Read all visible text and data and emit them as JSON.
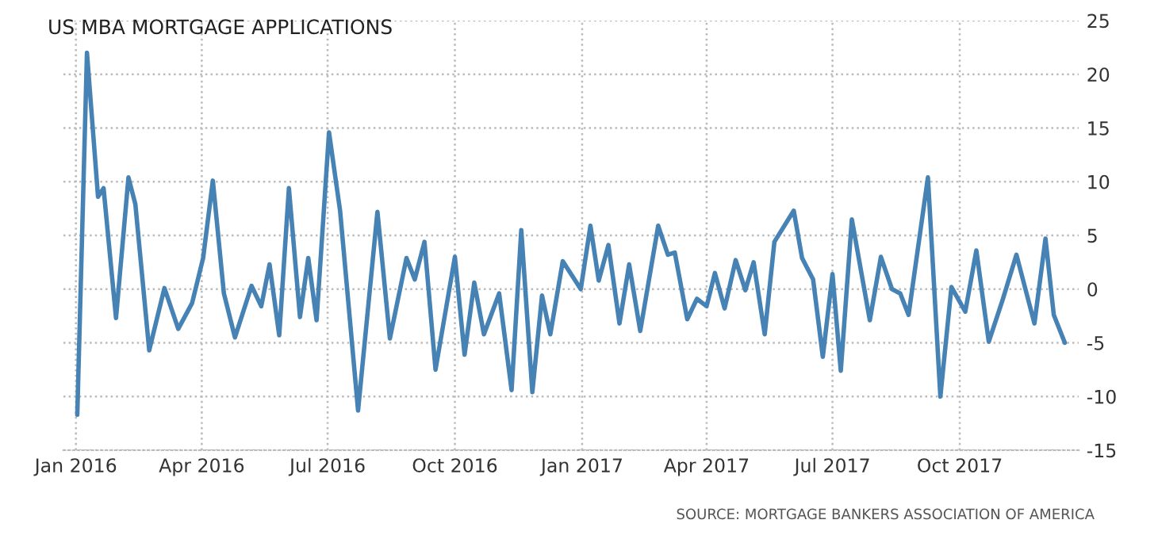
{
  "chart_data": {
    "type": "line",
    "title": "US MBA MORTGAGE APPLICATIONS",
    "x": [
      "2016-01-02",
      "2016-01-09",
      "2016-01-17",
      "2016-01-21",
      "2016-01-30",
      "2016-02-08",
      "2016-02-13",
      "2016-02-23",
      "2016-03-05",
      "2016-03-15",
      "2016-03-25",
      "2016-04-02",
      "2016-04-09",
      "2016-04-17",
      "2016-04-25",
      "2016-05-07",
      "2016-05-14",
      "2016-05-20",
      "2016-05-27",
      "2016-06-03",
      "2016-06-11",
      "2016-06-17",
      "2016-06-23",
      "2016-07-02",
      "2016-07-10",
      "2016-07-23",
      "2016-08-06",
      "2016-08-15",
      "2016-08-27",
      "2016-09-02",
      "2016-09-09",
      "2016-09-17",
      "2016-10-01",
      "2016-10-08",
      "2016-10-15",
      "2016-10-22",
      "2016-11-02",
      "2016-11-11",
      "2016-11-18",
      "2016-11-26",
      "2016-12-03",
      "2016-12-09",
      "2016-12-18",
      "2016-12-31",
      "2017-01-07",
      "2017-01-13",
      "2017-01-20",
      "2017-01-28",
      "2017-02-04",
      "2017-02-12",
      "2017-02-25",
      "2017-03-04",
      "2017-03-09",
      "2017-03-18",
      "2017-03-25",
      "2017-04-01",
      "2017-04-07",
      "2017-04-14",
      "2017-04-22",
      "2017-04-29",
      "2017-05-05",
      "2017-05-13",
      "2017-05-20",
      "2017-06-03",
      "2017-06-09",
      "2017-06-17",
      "2017-06-24",
      "2017-07-01",
      "2017-07-07",
      "2017-07-15",
      "2017-07-28",
      "2017-08-05",
      "2017-08-13",
      "2017-08-19",
      "2017-08-25",
      "2017-09-08",
      "2017-09-17",
      "2017-09-25",
      "2017-10-05",
      "2017-10-13",
      "2017-10-22",
      "2017-11-01",
      "2017-11-11",
      "2017-11-24",
      "2017-12-02",
      "2017-12-08",
      "2017-12-16"
    ],
    "series": [
      {
        "color": "#4682b4",
        "values": [
          -11.7,
          22.0,
          8.6,
          9.4,
          -2.7,
          10.4,
          7.9,
          -5.7,
          0.1,
          -3.7,
          -1.3,
          2.9,
          10.1,
          -0.4,
          -4.5,
          0.3,
          -1.6,
          2.3,
          -4.3,
          9.4,
          -2.6,
          2.9,
          -2.9,
          14.6,
          7.3,
          -11.3,
          7.2,
          -4.6,
          2.9,
          0.9,
          4.4,
          -7.5,
          3.0,
          -6.1,
          0.6,
          -4.2,
          -0.4,
          -9.4,
          5.5,
          -9.6,
          -0.6,
          -4.2,
          2.6,
          0.0,
          5.9,
          0.8,
          4.1,
          -3.2,
          2.3,
          -3.9,
          5.9,
          3.2,
          3.4,
          -2.8,
          -0.9,
          -1.6,
          1.5,
          -1.8,
          2.7,
          -0.1,
          2.5,
          -4.2,
          4.4,
          7.3,
          2.9,
          0.9,
          -6.3,
          1.4,
          -7.6,
          6.5,
          -2.9,
          3.0,
          0.0,
          -0.4,
          -2.4,
          10.4,
          -10.0,
          0.2,
          -2.1,
          3.6,
          -4.9,
          -1.0,
          3.2,
          -3.2,
          4.7,
          -2.4,
          -5.0
        ]
      }
    ],
    "xlim": [
      "2015-12-23",
      "2017-12-26"
    ],
    "xticks": [
      {
        "value": "2016-01-01",
        "label": "Jan 2016"
      },
      {
        "value": "2016-04-01",
        "label": "Apr 2016"
      },
      {
        "value": "2016-07-01",
        "label": "Jul 2016"
      },
      {
        "value": "2016-10-01",
        "label": "Oct 2016"
      },
      {
        "value": "2017-01-01",
        "label": "Jan 2017"
      },
      {
        "value": "2017-04-01",
        "label": "Apr 2017"
      },
      {
        "value": "2017-07-01",
        "label": "Jul 2017"
      },
      {
        "value": "2017-10-01",
        "label": "Oct 2017"
      }
    ],
    "ylim": [
      -15,
      25
    ],
    "yticks": [
      -15,
      -10,
      -5,
      0,
      5,
      10,
      15,
      20,
      25
    ],
    "grid": true,
    "line_style": "solid",
    "marker": "none",
    "annotations": [
      "SOURCE: MORTGAGE BANKERS ASSOCIATION OF AMERICA"
    ]
  }
}
